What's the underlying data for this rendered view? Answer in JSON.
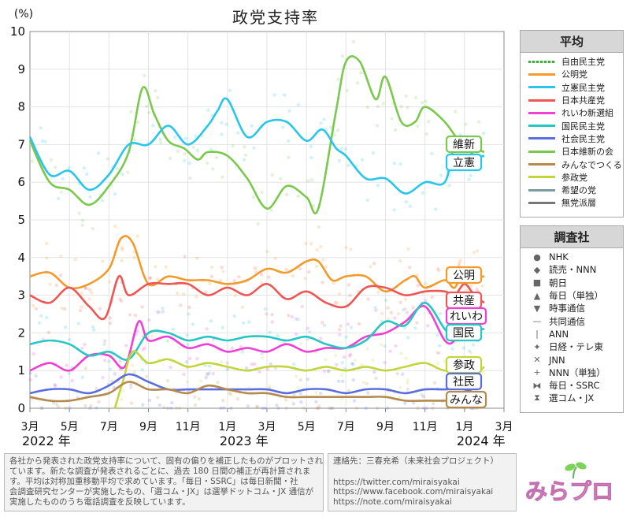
{
  "title": "政党支持率",
  "chart_data": {
    "type": "line",
    "title": "政党支持率",
    "ylabel": "(%)",
    "ylim": [
      0,
      10
    ],
    "y_ticks": [
      "0",
      "1",
      "2",
      "3",
      "4",
      "5",
      "6",
      "7",
      "8",
      "9",
      "10"
    ],
    "x_tick_labels": [
      "3月",
      "5月",
      "7月",
      "9月",
      "11月",
      "1月",
      "3月",
      "5月",
      "7月",
      "9月",
      "11月",
      "1月",
      "3月"
    ],
    "year_labels": [
      "2022 年",
      "2023 年",
      "2024 年"
    ],
    "grid": true,
    "x_domain": [
      0,
      24
    ],
    "x_unit": "months since 2022-03-01",
    "series": [
      {
        "name": "日本維新の会",
        "label": "維新",
        "color": "#7ac94c",
        "x": [
          0,
          1,
          2,
          3,
          4,
          5,
          5.7,
          6.3,
          7,
          7.8,
          8.5,
          9,
          10,
          11,
          12,
          13,
          14,
          14.6,
          15.5,
          16,
          16.7,
          17.5,
          18,
          18.8,
          19.5,
          20,
          21,
          22,
          22.5,
          23
        ],
        "y": [
          7.1,
          6,
          5.8,
          5.4,
          5.9,
          6.8,
          8.5,
          7.8,
          7.1,
          6.9,
          6.6,
          6.8,
          6.7,
          6.1,
          5.3,
          5.9,
          5.6,
          5.3,
          7.9,
          9.2,
          9.2,
          8.2,
          8.8,
          7.6,
          7.6,
          8,
          7.6,
          6.9,
          6.9,
          6.8
        ]
      },
      {
        "name": "立憲民主党",
        "label": "立憲",
        "color": "#29c6ec",
        "x": [
          0,
          1,
          2,
          3,
          4,
          5,
          6,
          7,
          8,
          9,
          9.5,
          10,
          11,
          12,
          13,
          14,
          14.8,
          15.5,
          16,
          17,
          18,
          19,
          20,
          21,
          21.5,
          22,
          22.5,
          23
        ],
        "y": [
          7.2,
          6.2,
          6.3,
          5.8,
          6.2,
          7,
          7,
          7.5,
          7,
          7.5,
          7.9,
          8.2,
          7.2,
          7.6,
          7.6,
          7.1,
          7.4,
          6.9,
          6.7,
          6.1,
          6.1,
          5.7,
          6,
          6,
          7,
          7,
          6.7,
          6.7
        ]
      },
      {
        "name": "公明党",
        "label": "公明",
        "color": "#f39a2a",
        "x": [
          0,
          1,
          2,
          3,
          4,
          4.6,
          5.2,
          6,
          7,
          8,
          9,
          10,
          11,
          12,
          13,
          14,
          14.6,
          15.3,
          16,
          17,
          18,
          19,
          19.5,
          20,
          21,
          21.5,
          22,
          22.5,
          23
        ],
        "y": [
          3.5,
          3.6,
          3.2,
          3.3,
          3.7,
          4.5,
          4.4,
          3.3,
          3.5,
          3.4,
          3.4,
          3.3,
          3.4,
          3.7,
          3.6,
          3.9,
          3.9,
          3.4,
          3.5,
          3.5,
          3.1,
          3.4,
          3.5,
          3.2,
          3.4,
          3.2,
          3.7,
          3.5,
          3.5
        ]
      },
      {
        "name": "日本共産党",
        "label": "共産",
        "color": "#ee5555",
        "x": [
          0,
          1,
          2,
          3,
          3.8,
          4.5,
          5,
          6,
          7,
          8,
          9,
          10,
          11,
          12,
          13,
          14,
          15,
          16,
          17,
          18,
          19,
          20,
          21,
          21.5,
          22,
          22.5,
          23
        ],
        "y": [
          3,
          2.8,
          3.2,
          2.7,
          2.4,
          3.5,
          3,
          3.3,
          3.3,
          3.3,
          3,
          3.2,
          3,
          3.3,
          2.9,
          3.1,
          2.8,
          2.7,
          3.2,
          3.2,
          3,
          3.1,
          3.1,
          3,
          3.3,
          3,
          2.8
        ]
      },
      {
        "name": "れいわ新選組",
        "label": "れいわ",
        "color": "#ef3fd5",
        "x": [
          0,
          1,
          2,
          3,
          4,
          4.8,
          5.5,
          6,
          7,
          8,
          9,
          10,
          11,
          12,
          13,
          14,
          15,
          16,
          17,
          18,
          19,
          20,
          21,
          21.5,
          22,
          22.5,
          23
        ],
        "y": [
          1,
          1.2,
          1,
          1.4,
          1.4,
          1.1,
          2.3,
          1.8,
          1.9,
          1.6,
          1.7,
          1.5,
          1.6,
          1.5,
          1.7,
          1.5,
          1.6,
          1.6,
          1.9,
          2,
          2.3,
          2.7,
          1.8,
          1.8,
          2.3,
          2.6,
          2.5
        ]
      },
      {
        "name": "国民民主党",
        "label": "国民",
        "color": "#26c7c2",
        "x": [
          0,
          1,
          2,
          3,
          4,
          5,
          6,
          7,
          8,
          9,
          10,
          11,
          12,
          13,
          14,
          15,
          16,
          17,
          18,
          19,
          20,
          21,
          21.5,
          22,
          22.5,
          23
        ],
        "y": [
          1.7,
          1.8,
          1.7,
          1.4,
          1.5,
          1.3,
          2,
          2,
          1.8,
          1.9,
          1.8,
          1.9,
          1.9,
          1.8,
          1.9,
          1.7,
          1.6,
          1.8,
          2.3,
          2.2,
          2.8,
          2.1,
          1.9,
          2.1,
          2.1,
          2.1
        ]
      },
      {
        "name": "参政党",
        "label": "参政",
        "color": "#c2d63c",
        "x": [
          4.3,
          4.7,
          5.2,
          6,
          7,
          8,
          9,
          10,
          11,
          12,
          13,
          14,
          15,
          16,
          17,
          18,
          19,
          20,
          21,
          22,
          22.5,
          23
        ],
        "y": [
          0,
          0.7,
          1.5,
          1.2,
          1.3,
          1.1,
          1.2,
          1.1,
          1,
          1.1,
          1.1,
          1,
          1.1,
          1,
          1.1,
          1,
          1.1,
          1.2,
          1,
          1.1,
          0.9,
          1.1
        ]
      },
      {
        "name": "社会民主党",
        "label": "社民",
        "color": "#5a6ee0",
        "x": [
          0,
          1,
          2,
          3,
          4,
          5,
          6,
          7,
          8,
          9,
          10,
          11,
          12,
          13,
          14,
          15,
          16,
          17,
          18,
          19,
          20,
          21,
          22,
          23
        ],
        "y": [
          0.4,
          0.5,
          0.5,
          0.4,
          0.6,
          0.9,
          0.7,
          0.5,
          0.5,
          0.5,
          0.5,
          0.5,
          0.5,
          0.4,
          0.5,
          0.5,
          0.4,
          0.5,
          0.5,
          0.4,
          0.5,
          0.5,
          0.5,
          0.3
        ]
      },
      {
        "name": "みんなでつくる",
        "label": "みんな",
        "color": "#b48a4d",
        "x": [
          0,
          1,
          2,
          3,
          4,
          5,
          6,
          7,
          8,
          9,
          10,
          11,
          12,
          13,
          14,
          15,
          16,
          17,
          18,
          19,
          20,
          21,
          22,
          23
        ],
        "y": [
          0.3,
          0.2,
          0.2,
          0.3,
          0.4,
          0.7,
          0.5,
          0.5,
          0.4,
          0.6,
          0.5,
          0.4,
          0.4,
          0.3,
          0.3,
          0.3,
          0.3,
          0.3,
          0.3,
          0.2,
          0.2,
          0.2,
          0.2,
          0.2
        ]
      },
      {
        "name": "自由民主党",
        "label": "",
        "color": "#3fae3f",
        "x": [],
        "y": []
      },
      {
        "name": "希望の党",
        "label": "",
        "color": "#7a9c9c",
        "x": [],
        "y": []
      },
      {
        "name": "無党派層",
        "label": "",
        "color": "#777777",
        "x": [],
        "y": []
      }
    ]
  },
  "legend": {
    "title": "平均",
    "items": [
      {
        "name": "自由民主党",
        "color": "#3fae3f",
        "dashed": true
      },
      {
        "name": "公明党",
        "color": "#f39a2a"
      },
      {
        "name": "立憲民主党",
        "color": "#29c6ec"
      },
      {
        "name": "日本共産党",
        "color": "#ee5555"
      },
      {
        "name": "れいわ新選組",
        "color": "#ef3fd5"
      },
      {
        "name": "国民民主党",
        "color": "#26c7c2"
      },
      {
        "name": "社会民主党",
        "color": "#5a6ee0"
      },
      {
        "name": "日本維新の会",
        "color": "#7ac94c"
      },
      {
        "name": "みんなでつくる",
        "color": "#b48a4d"
      },
      {
        "name": "参政党",
        "color": "#c2d63c"
      },
      {
        "name": "希望の党",
        "color": "#7a9c9c"
      },
      {
        "name": "無党派層",
        "color": "#777777"
      }
    ]
  },
  "pollsters": {
    "title": "調査社",
    "items": [
      {
        "name": "NHK",
        "marker": "●"
      },
      {
        "name": "読売・NNN",
        "marker": "◆"
      },
      {
        "name": "朝日",
        "marker": "■"
      },
      {
        "name": "毎日（単独）",
        "marker": "▲"
      },
      {
        "name": "時事通信",
        "marker": "▼"
      },
      {
        "name": "共同通信",
        "marker": "—"
      },
      {
        "name": "ANN",
        "marker": "|"
      },
      {
        "name": "日経・テレ東",
        "marker": "✦"
      },
      {
        "name": "JNN",
        "marker": "✕"
      },
      {
        "name": "NNN（単独）",
        "marker": "+"
      },
      {
        "name": "毎日・SSRC",
        "marker": "⧓"
      },
      {
        "name": "選コム・JX",
        "marker": "⧗"
      }
    ]
  },
  "footer": {
    "note": [
      "各社から発表された政党支持率について、固有の偏りを補正したものがプロットされ",
      "ています。新たな調査が発表されるごとに、過去 180 日間の補正が再計算されま",
      "す。平均は対称加重移動平均で求めています。「毎日・SSRC」は毎日新聞・社",
      "会調査研究センターが実施したもの、「選コム・JX」は選挙ドットコム・JX 通信が",
      "実施したもののうち電話調査を反映しています。"
    ],
    "contact": "連絡先：三春充希（未来社会プロジェクト）",
    "links": [
      "https://twitter.com/miraisyakai",
      "https://www.facebook.com/miraisyakai",
      "https://note.com/miraisyakai"
    ],
    "logo_text": "みらプロ"
  }
}
